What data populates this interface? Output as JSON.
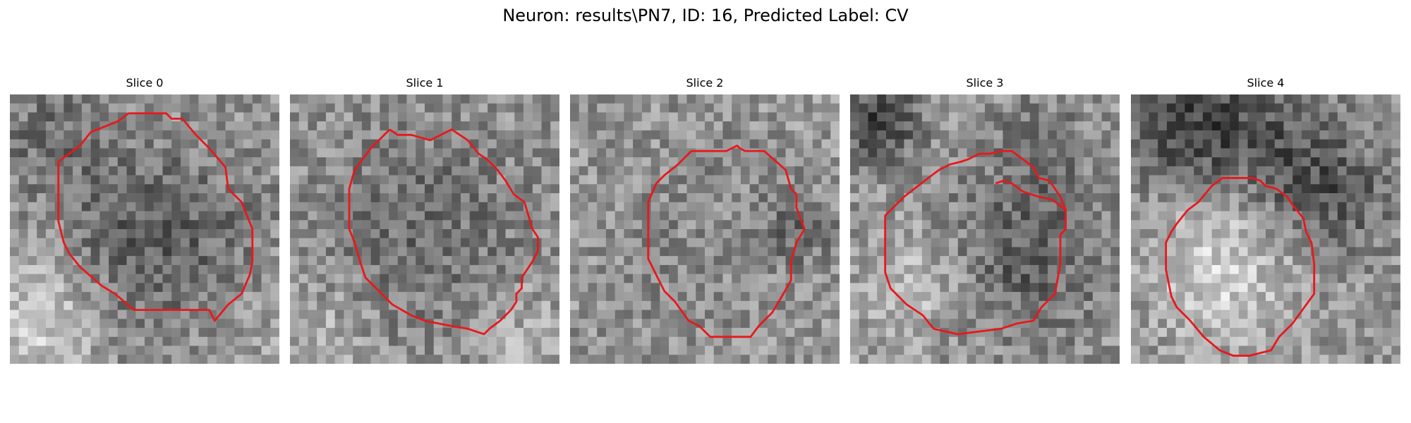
{
  "figure": {
    "title": "Neuron: results\\PN7, ID: 16, Predicted Label: CV"
  },
  "slices": [
    {
      "label": "Slice 0",
      "texture": {
        "seed": 11,
        "blobs": [
          [
            0.55,
            0.55,
            0.35,
            -60
          ],
          [
            0.15,
            0.15,
            0.22,
            -35
          ],
          [
            0.1,
            0.85,
            0.25,
            55
          ],
          [
            0.85,
            0.85,
            0.2,
            20
          ]
        ]
      },
      "contour": [
        [
          0.44,
          0.07
        ],
        [
          0.58,
          0.07
        ],
        [
          0.6,
          0.09
        ],
        [
          0.64,
          0.09
        ],
        [
          0.69,
          0.15
        ],
        [
          0.74,
          0.2
        ],
        [
          0.8,
          0.27
        ],
        [
          0.81,
          0.35
        ],
        [
          0.86,
          0.4
        ],
        [
          0.9,
          0.5
        ],
        [
          0.9,
          0.62
        ],
        [
          0.89,
          0.67
        ],
        [
          0.86,
          0.74
        ],
        [
          0.81,
          0.78
        ],
        [
          0.76,
          0.84
        ],
        [
          0.74,
          0.8
        ],
        [
          0.72,
          0.8
        ],
        [
          0.48,
          0.8
        ],
        [
          0.46,
          0.8
        ],
        [
          0.39,
          0.74
        ],
        [
          0.34,
          0.71
        ],
        [
          0.26,
          0.64
        ],
        [
          0.22,
          0.59
        ],
        [
          0.2,
          0.55
        ],
        [
          0.18,
          0.47
        ],
        [
          0.18,
          0.4
        ],
        [
          0.18,
          0.35
        ],
        [
          0.18,
          0.25
        ],
        [
          0.26,
          0.19
        ],
        [
          0.3,
          0.14
        ],
        [
          0.35,
          0.12
        ],
        [
          0.4,
          0.1
        ],
        [
          0.44,
          0.07
        ]
      ]
    },
    {
      "label": "Slice 1",
      "texture": {
        "seed": 23,
        "blobs": [
          [
            0.5,
            0.5,
            0.4,
            -40
          ],
          [
            0.85,
            0.9,
            0.2,
            30
          ],
          [
            0.1,
            0.9,
            0.2,
            30
          ]
        ]
      },
      "contour": [
        [
          0.37,
          0.13
        ],
        [
          0.4,
          0.15
        ],
        [
          0.45,
          0.15
        ],
        [
          0.52,
          0.17
        ],
        [
          0.56,
          0.15
        ],
        [
          0.6,
          0.13
        ],
        [
          0.63,
          0.15
        ],
        [
          0.66,
          0.17
        ],
        [
          0.7,
          0.22
        ],
        [
          0.73,
          0.24
        ],
        [
          0.77,
          0.28
        ],
        [
          0.8,
          0.32
        ],
        [
          0.83,
          0.37
        ],
        [
          0.87,
          0.4
        ],
        [
          0.9,
          0.5
        ],
        [
          0.92,
          0.53
        ],
        [
          0.92,
          0.58
        ],
        [
          0.9,
          0.62
        ],
        [
          0.86,
          0.68
        ],
        [
          0.86,
          0.72
        ],
        [
          0.84,
          0.74
        ],
        [
          0.84,
          0.77
        ],
        [
          0.82,
          0.8
        ],
        [
          0.78,
          0.84
        ],
        [
          0.74,
          0.87
        ],
        [
          0.72,
          0.89
        ],
        [
          0.66,
          0.87
        ],
        [
          0.6,
          0.86
        ],
        [
          0.55,
          0.85
        ],
        [
          0.5,
          0.84
        ],
        [
          0.45,
          0.82
        ],
        [
          0.38,
          0.78
        ],
        [
          0.33,
          0.73
        ],
        [
          0.28,
          0.68
        ],
        [
          0.26,
          0.62
        ],
        [
          0.24,
          0.55
        ],
        [
          0.22,
          0.5
        ],
        [
          0.22,
          0.42
        ],
        [
          0.22,
          0.35
        ],
        [
          0.24,
          0.28
        ],
        [
          0.3,
          0.2
        ],
        [
          0.37,
          0.13
        ]
      ]
    },
    {
      "label": "Slice 2",
      "texture": {
        "seed": 37,
        "blobs": [
          [
            0.5,
            0.52,
            0.3,
            -35
          ],
          [
            0.5,
            0.52,
            0.22,
            25
          ],
          [
            0.85,
            0.5,
            0.12,
            -40
          ]
        ]
      },
      "contour": [
        [
          0.45,
          0.21
        ],
        [
          0.58,
          0.21
        ],
        [
          0.6,
          0.2
        ],
        [
          0.62,
          0.19
        ],
        [
          0.63,
          0.2
        ],
        [
          0.65,
          0.21
        ],
        [
          0.72,
          0.21
        ],
        [
          0.8,
          0.28
        ],
        [
          0.82,
          0.35
        ],
        [
          0.84,
          0.37
        ],
        [
          0.84,
          0.42
        ],
        [
          0.87,
          0.5
        ],
        [
          0.84,
          0.55
        ],
        [
          0.82,
          0.62
        ],
        [
          0.82,
          0.69
        ],
        [
          0.78,
          0.76
        ],
        [
          0.75,
          0.81
        ],
        [
          0.7,
          0.86
        ],
        [
          0.67,
          0.9
        ],
        [
          0.62,
          0.9
        ],
        [
          0.6,
          0.9
        ],
        [
          0.52,
          0.9
        ],
        [
          0.48,
          0.86
        ],
        [
          0.44,
          0.84
        ],
        [
          0.39,
          0.77
        ],
        [
          0.35,
          0.73
        ],
        [
          0.32,
          0.67
        ],
        [
          0.29,
          0.61
        ],
        [
          0.29,
          0.55
        ],
        [
          0.29,
          0.45
        ],
        [
          0.29,
          0.4
        ],
        [
          0.32,
          0.33
        ],
        [
          0.35,
          0.3
        ],
        [
          0.4,
          0.26
        ],
        [
          0.45,
          0.21
        ]
      ]
    },
    {
      "label": "Slice 3",
      "texture": {
        "seed": 41,
        "blobs": [
          [
            0.65,
            0.6,
            0.3,
            -55
          ],
          [
            0.1,
            0.1,
            0.15,
            -90
          ],
          [
            0.7,
            0.2,
            0.2,
            -30
          ],
          [
            0.25,
            0.7,
            0.2,
            40
          ]
        ]
      },
      "contour": [
        [
          0.54,
          0.33
        ],
        [
          0.57,
          0.32
        ],
        [
          0.6,
          0.33
        ],
        [
          0.64,
          0.36
        ],
        [
          0.7,
          0.38
        ],
        [
          0.75,
          0.39
        ],
        [
          0.8,
          0.43
        ],
        [
          0.8,
          0.5
        ],
        [
          0.78,
          0.52
        ],
        [
          0.78,
          0.63
        ],
        [
          0.76,
          0.74
        ],
        [
          0.71,
          0.79
        ],
        [
          0.68,
          0.84
        ],
        [
          0.62,
          0.85
        ],
        [
          0.56,
          0.87
        ],
        [
          0.4,
          0.89
        ],
        [
          0.31,
          0.87
        ],
        [
          0.27,
          0.82
        ],
        [
          0.21,
          0.78
        ],
        [
          0.15,
          0.72
        ],
        [
          0.13,
          0.66
        ],
        [
          0.13,
          0.6
        ],
        [
          0.13,
          0.52
        ],
        [
          0.13,
          0.45
        ],
        [
          0.2,
          0.38
        ],
        [
          0.29,
          0.31
        ],
        [
          0.33,
          0.28
        ],
        [
          0.37,
          0.26
        ],
        [
          0.41,
          0.25
        ],
        [
          0.44,
          0.24
        ],
        [
          0.48,
          0.22
        ],
        [
          0.52,
          0.22
        ],
        [
          0.56,
          0.21
        ],
        [
          0.6,
          0.21
        ],
        [
          0.64,
          0.24
        ],
        [
          0.68,
          0.27
        ],
        [
          0.7,
          0.31
        ],
        [
          0.74,
          0.32
        ],
        [
          0.78,
          0.38
        ],
        [
          0.8,
          0.43
        ]
      ]
    },
    {
      "label": "Slice 4",
      "texture": {
        "seed": 53,
        "blobs": [
          [
            0.35,
            0.68,
            0.25,
            55
          ],
          [
            0.25,
            0.15,
            0.25,
            -90
          ],
          [
            0.6,
            0.25,
            0.25,
            -55
          ],
          [
            0.8,
            0.4,
            0.2,
            -40
          ],
          [
            0.3,
            0.38,
            0.2,
            40
          ]
        ]
      },
      "contour": [
        [
          0.21,
          0.43
        ],
        [
          0.25,
          0.4
        ],
        [
          0.3,
          0.34
        ],
        [
          0.34,
          0.31
        ],
        [
          0.45,
          0.31
        ],
        [
          0.48,
          0.32
        ],
        [
          0.5,
          0.34
        ],
        [
          0.54,
          0.35
        ],
        [
          0.58,
          0.38
        ],
        [
          0.6,
          0.41
        ],
        [
          0.64,
          0.46
        ],
        [
          0.65,
          0.51
        ],
        [
          0.67,
          0.55
        ],
        [
          0.68,
          0.63
        ],
        [
          0.68,
          0.74
        ],
        [
          0.6,
          0.85
        ],
        [
          0.55,
          0.9
        ],
        [
          0.52,
          0.95
        ],
        [
          0.44,
          0.97
        ],
        [
          0.38,
          0.97
        ],
        [
          0.33,
          0.95
        ],
        [
          0.27,
          0.9
        ],
        [
          0.22,
          0.84
        ],
        [
          0.17,
          0.79
        ],
        [
          0.15,
          0.75
        ],
        [
          0.13,
          0.65
        ],
        [
          0.13,
          0.55
        ],
        [
          0.15,
          0.51
        ],
        [
          0.17,
          0.48
        ],
        [
          0.21,
          0.43
        ]
      ]
    }
  ],
  "colors": {
    "contour": "#e8181c",
    "background": "#ffffff",
    "text": "#000000"
  }
}
